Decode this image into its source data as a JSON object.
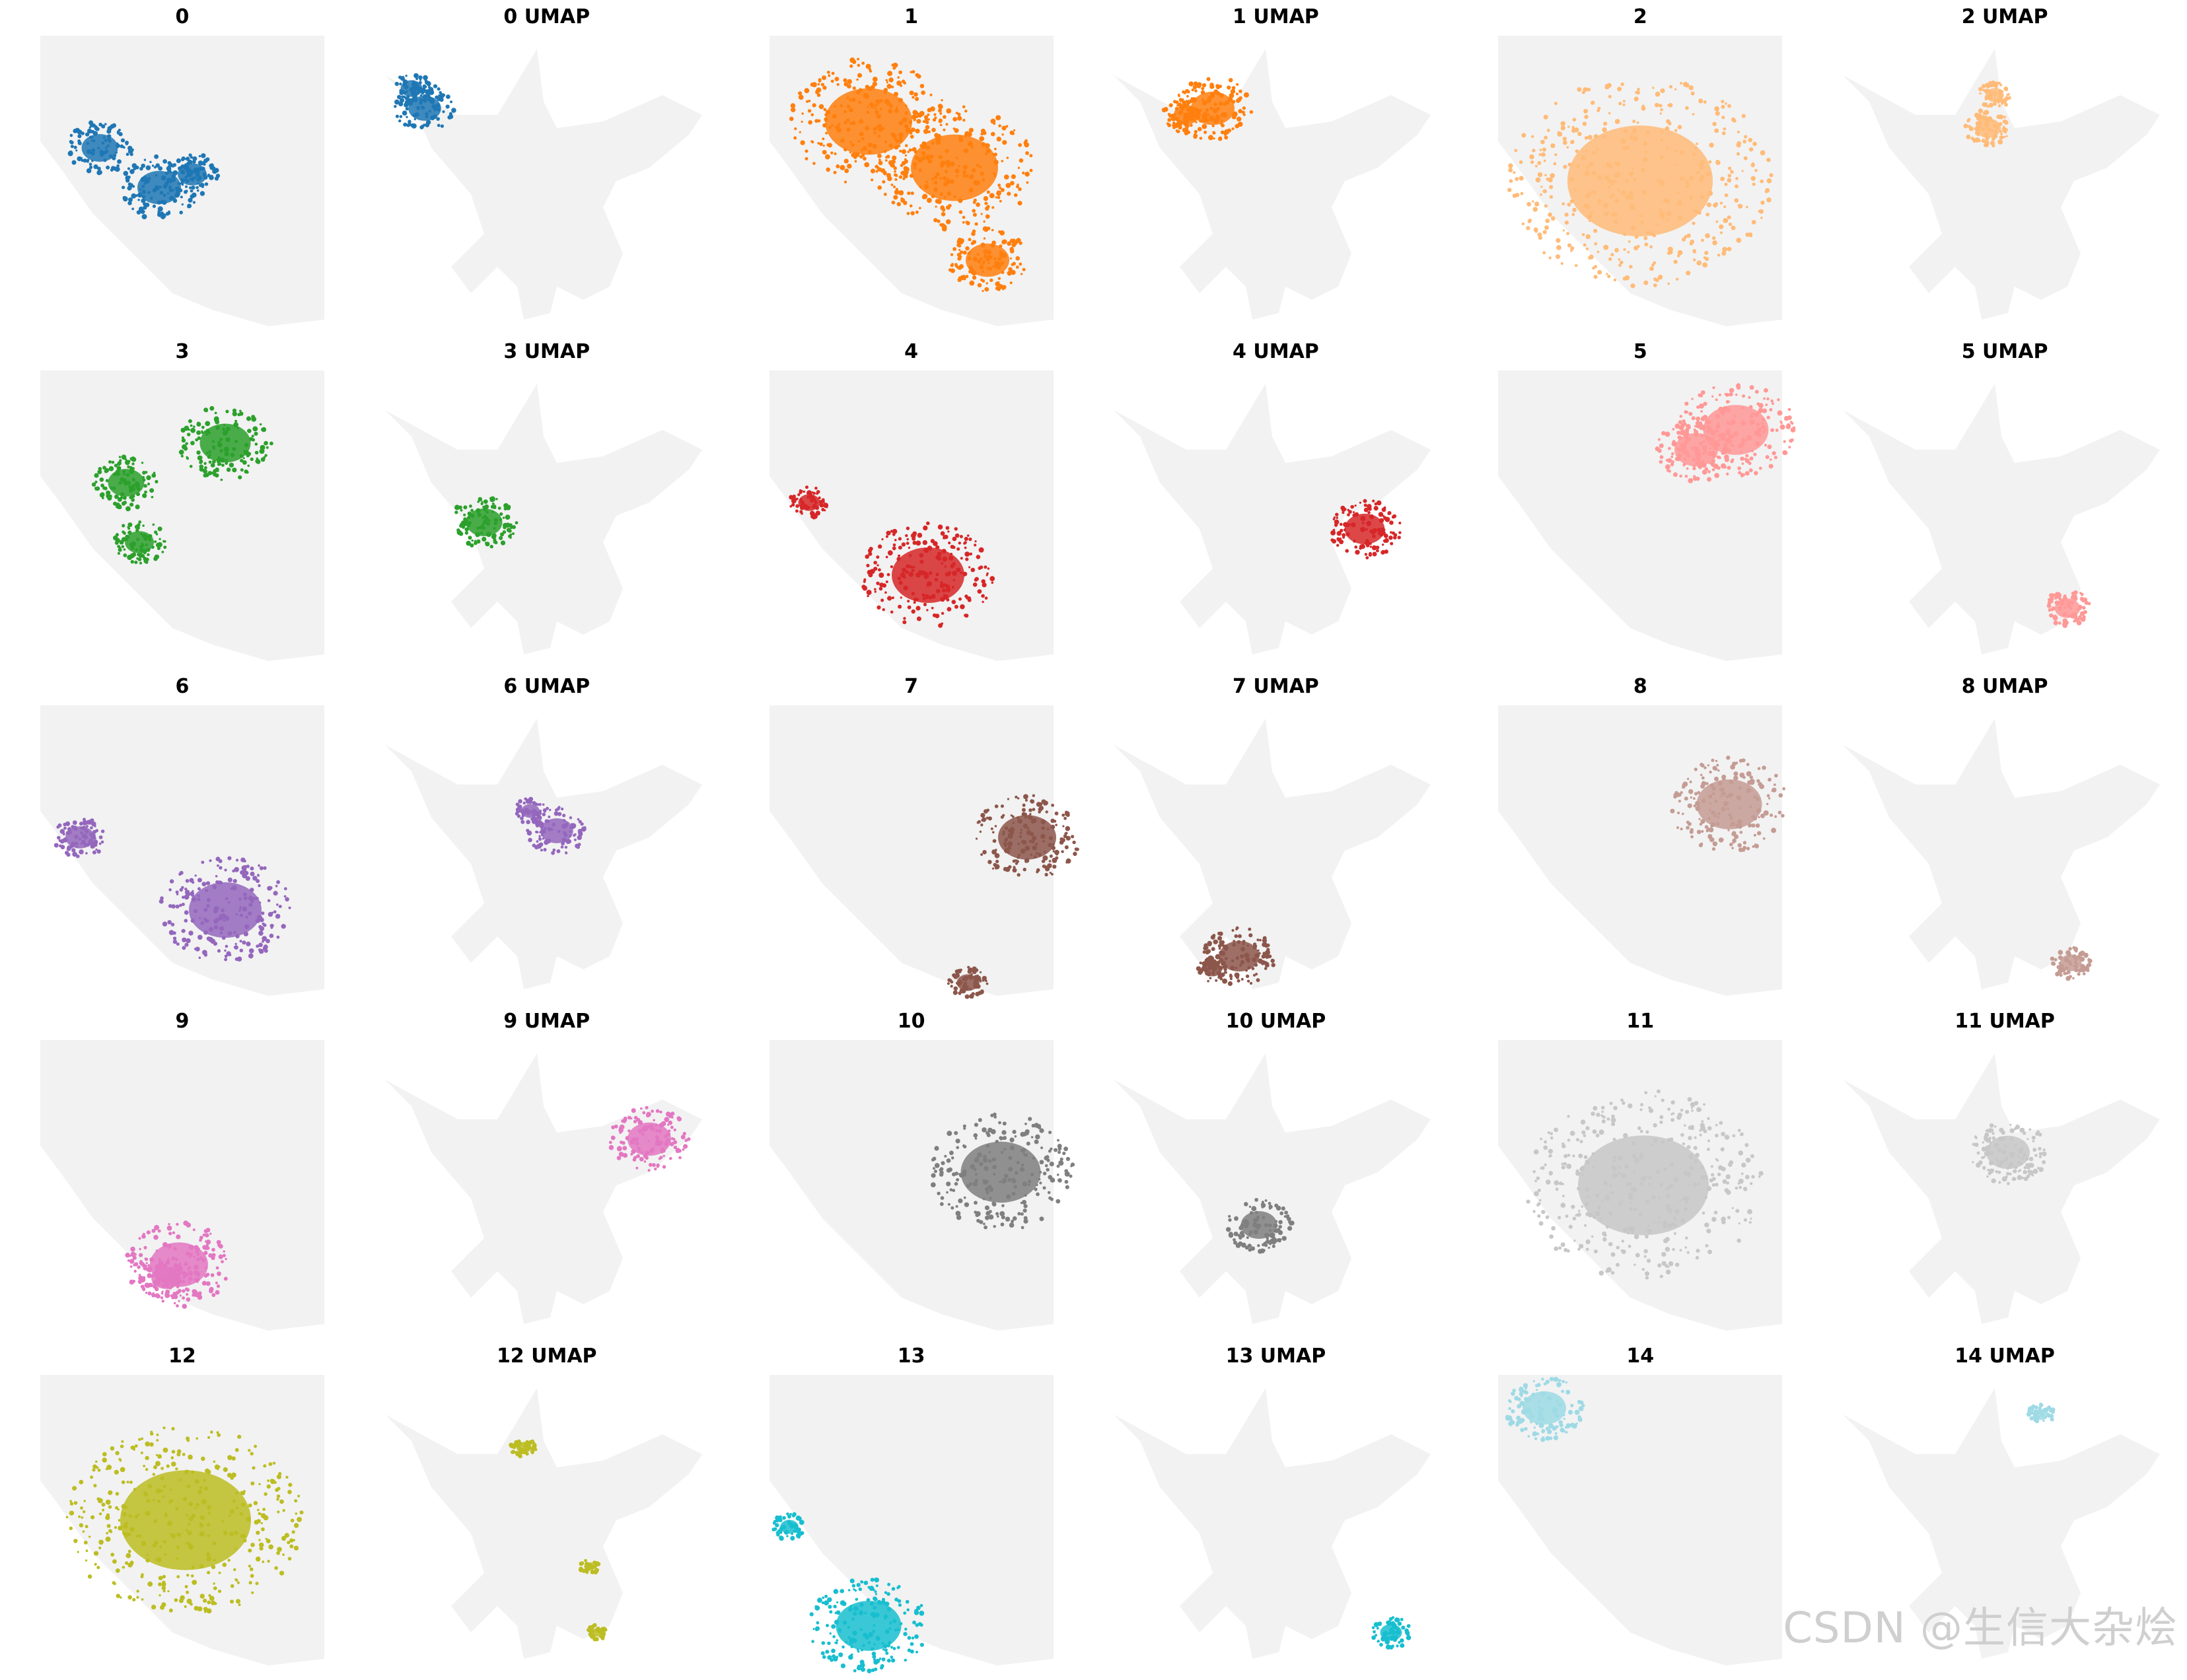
{
  "chart_data": [
    {
      "type": "scatter",
      "title": "0",
      "kind": "spatial",
      "color": "#1f77b4"
    },
    {
      "type": "scatter",
      "title": "0 UMAP",
      "kind": "umap",
      "color": "#1f77b4"
    },
    {
      "type": "scatter",
      "title": "1",
      "kind": "spatial",
      "color": "#ff7f0e"
    },
    {
      "type": "scatter",
      "title": "1 UMAP",
      "kind": "umap",
      "color": "#ff7f0e"
    },
    {
      "type": "scatter",
      "title": "2",
      "kind": "spatial",
      "color": "#ffbb78"
    },
    {
      "type": "scatter",
      "title": "2 UMAP",
      "kind": "umap",
      "color": "#ffbb78"
    },
    {
      "type": "scatter",
      "title": "3",
      "kind": "spatial",
      "color": "#2ca02c"
    },
    {
      "type": "scatter",
      "title": "3 UMAP",
      "kind": "umap",
      "color": "#2ca02c"
    },
    {
      "type": "scatter",
      "title": "4",
      "kind": "spatial",
      "color": "#d62728"
    },
    {
      "type": "scatter",
      "title": "4 UMAP",
      "kind": "umap",
      "color": "#d62728"
    },
    {
      "type": "scatter",
      "title": "5",
      "kind": "spatial",
      "color": "#ff9896"
    },
    {
      "type": "scatter",
      "title": "5 UMAP",
      "kind": "umap",
      "color": "#ff9896"
    },
    {
      "type": "scatter",
      "title": "6",
      "kind": "spatial",
      "color": "#9467bd"
    },
    {
      "type": "scatter",
      "title": "6 UMAP",
      "kind": "umap",
      "color": "#9467bd"
    },
    {
      "type": "scatter",
      "title": "7",
      "kind": "spatial",
      "color": "#8c564b"
    },
    {
      "type": "scatter",
      "title": "7 UMAP",
      "kind": "umap",
      "color": "#8c564b"
    },
    {
      "type": "scatter",
      "title": "8",
      "kind": "spatial",
      "color": "#c49c94"
    },
    {
      "type": "scatter",
      "title": "8 UMAP",
      "kind": "umap",
      "color": "#c49c94"
    },
    {
      "type": "scatter",
      "title": "9",
      "kind": "spatial",
      "color": "#e377c2"
    },
    {
      "type": "scatter",
      "title": "9 UMAP",
      "kind": "umap",
      "color": "#e377c2"
    },
    {
      "type": "scatter",
      "title": "10",
      "kind": "spatial",
      "color": "#7f7f7f"
    },
    {
      "type": "scatter",
      "title": "10 UMAP",
      "kind": "umap",
      "color": "#7f7f7f"
    },
    {
      "type": "scatter",
      "title": "11",
      "kind": "spatial",
      "color": "#c7c7c7"
    },
    {
      "type": "scatter",
      "title": "11 UMAP",
      "kind": "umap",
      "color": "#c7c7c7"
    },
    {
      "type": "scatter",
      "title": "12",
      "kind": "spatial",
      "color": "#bcbd22"
    },
    {
      "type": "scatter",
      "title": "12 UMAP",
      "kind": "umap",
      "color": "#bcbd22"
    },
    {
      "type": "scatter",
      "title": "13",
      "kind": "spatial",
      "color": "#17becf"
    },
    {
      "type": "scatter",
      "title": "13 UMAP",
      "kind": "umap",
      "color": "#17becf"
    },
    {
      "type": "scatter",
      "title": "14",
      "kind": "spatial",
      "color": "#9edae5"
    },
    {
      "type": "scatter",
      "title": "14 UMAP",
      "kind": "umap",
      "color": "#9edae5"
    }
  ],
  "background_color": "#f2f2f2",
  "watermark": "CSDN @生信大杂烩"
}
